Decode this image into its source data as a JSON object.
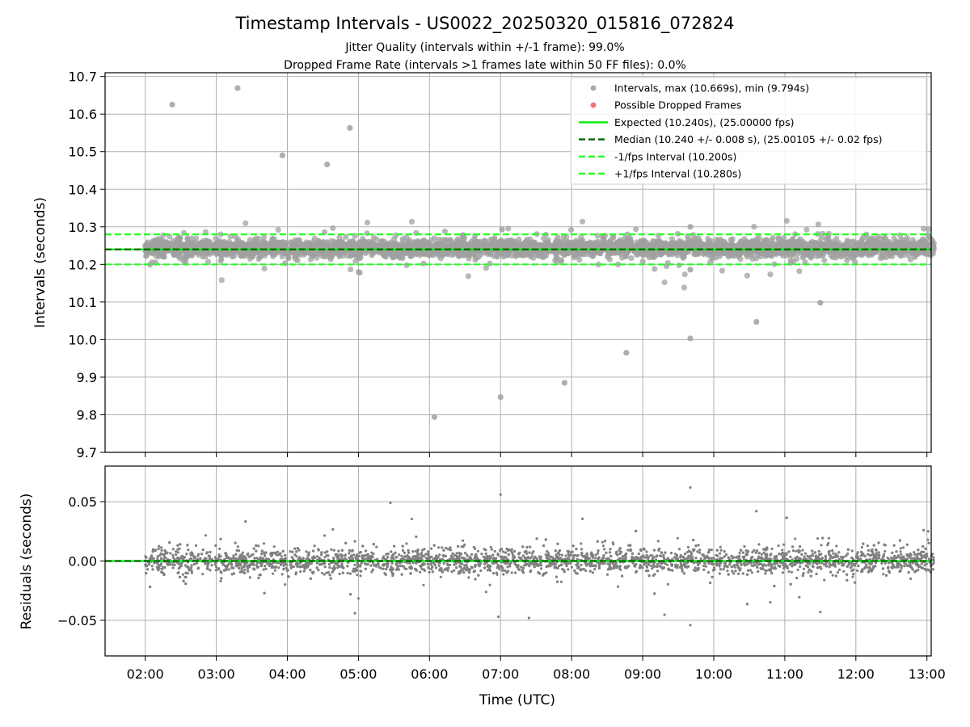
{
  "chart_data": {
    "title": "Timestamp Intervals - US0022_20250320_015816_072824",
    "subtitle_lines": [
      "Jitter Quality (intervals within +/-1 frame): 99.0%",
      "Dropped Frame Rate (intervals >1 frames late within 50 FF files): 0.0%"
    ],
    "xlabel": "Time (UTC)",
    "x_tick_labels": [
      "02:00",
      "03:00",
      "04:00",
      "05:00",
      "06:00",
      "07:00",
      "08:00",
      "09:00",
      "10:00",
      "11:00",
      "12:00",
      "13:00"
    ],
    "panels": [
      {
        "name": "intervals",
        "type": "scatter",
        "ylabel": "Intervals (seconds)",
        "ylim": [
          9.7,
          10.71
        ],
        "y_tick_labels": [
          "9.7",
          "9.8",
          "9.9",
          "10.0",
          "10.1",
          "10.2",
          "10.3",
          "10.4",
          "10.5",
          "10.6",
          "10.7"
        ],
        "grid": true,
        "legend_placement": "top-right",
        "legend": [
          {
            "label": "Intervals, max (10.669s), min (9.794s)",
            "marker": "dot",
            "color": "#a0a0a0"
          },
          {
            "label": "Possible Dropped Frames",
            "marker": "dot",
            "color": "#ee6666"
          },
          {
            "label": "Expected (10.240s), (25.00000 fps)",
            "marker": "solid-line",
            "color": "#00ee00"
          },
          {
            "label": "Median (10.240 +/- 0.008 s), (25.00105 +/- 0.02 fps)",
            "marker": "dashed-line",
            "color": "#006400"
          },
          {
            "label": "-1/fps Interval (10.200s)",
            "marker": "dashed-line",
            "color": "#22ff22"
          },
          {
            "label": "+1/fps Interval (10.280s)",
            "marker": "dashed-line",
            "color": "#22ff22"
          }
        ],
        "reference_lines": [
          {
            "name": "Expected",
            "y": 10.24,
            "style": "solid",
            "color": "#00ee00"
          },
          {
            "name": "Median",
            "y": 10.24,
            "style": "dashed",
            "color": "#006400"
          },
          {
            "name": "-1/fps Interval",
            "y": 10.2,
            "style": "dashed",
            "color": "#22ff22"
          },
          {
            "name": "+1/fps Interval",
            "y": 10.28,
            "style": "dashed",
            "color": "#22ff22"
          }
        ],
        "dense_band": {
          "x_range_hours": [
            2.0,
            13.1
          ],
          "center": 10.243,
          "spread": 0.03,
          "count": 3900,
          "color": "#a0a0a0"
        },
        "outliers": [
          {
            "x": 2.38,
            "y": 10.625
          },
          {
            "x": 3.3,
            "y": 10.669
          },
          {
            "x": 3.93,
            "y": 10.49
          },
          {
            "x": 4.56,
            "y": 10.466
          },
          {
            "x": 4.88,
            "y": 10.563
          },
          {
            "x": 6.07,
            "y": 9.794
          },
          {
            "x": 7.0,
            "y": 9.847
          },
          {
            "x": 7.9,
            "y": 9.885
          },
          {
            "x": 8.77,
            "y": 9.965
          },
          {
            "x": 9.67,
            "y": 10.003
          },
          {
            "x": 10.6,
            "y": 10.047
          },
          {
            "x": 11.5,
            "y": 10.098
          },
          {
            "x": 9.67,
            "y": 10.3
          },
          {
            "x": 7.02,
            "y": 10.293
          },
          {
            "x": 9.67,
            "y": 10.186
          }
        ]
      },
      {
        "name": "residuals",
        "type": "scatter",
        "ylabel": "Residuals (seconds)",
        "ylim": [
          -0.08,
          0.08
        ],
        "y_ticks": [
          -0.05,
          0.0,
          0.05
        ],
        "y_tick_labels": [
          "−0.05",
          "0.00",
          "0.05"
        ],
        "grid": true,
        "reference_lines": [
          {
            "name": "zero",
            "y": 0.0,
            "style": "solid",
            "color": "#00ee00"
          },
          {
            "name": "zero-median",
            "y": 0.0,
            "style": "dashed",
            "color": "#006400"
          }
        ],
        "dense_band": {
          "x_range_hours": [
            2.0,
            13.1
          ],
          "center": 0.0,
          "spread": 0.015,
          "count": 3900,
          "color": "#808080"
        },
        "outliers": [
          {
            "x": 5.45,
            "y": 0.049
          },
          {
            "x": 7.0,
            "y": 0.056
          },
          {
            "x": 9.67,
            "y": 0.062
          },
          {
            "x": 9.67,
            "y": -0.054
          },
          {
            "x": 6.97,
            "y": -0.047
          },
          {
            "x": 7.4,
            "y": -0.048
          },
          {
            "x": 4.95,
            "y": -0.044
          },
          {
            "x": 11.5,
            "y": -0.043
          },
          {
            "x": 10.6,
            "y": 0.042
          }
        ]
      }
    ]
  }
}
